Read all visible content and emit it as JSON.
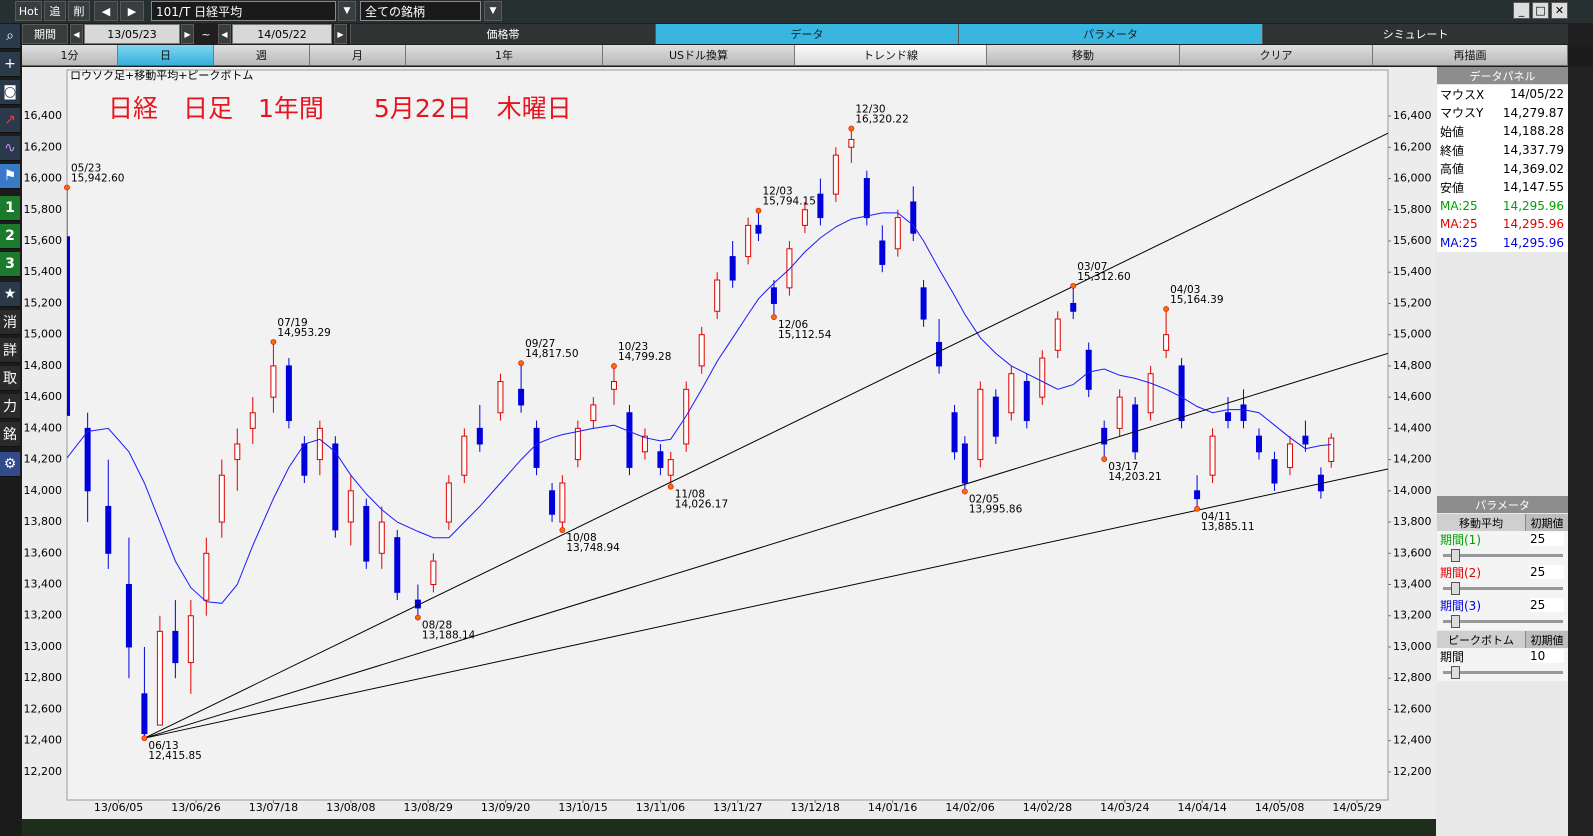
{
  "toolbar": {
    "buttons": [
      "Hot",
      "追",
      "削"
    ],
    "symbol": "101/T 日経平均",
    "filter": "全ての銘柄"
  },
  "period": {
    "label": "期間",
    "from": "13/05/23",
    "separator": "~",
    "to": "14/05/22"
  },
  "tabs": [
    "価格帯",
    "データ",
    "パラメータ",
    "シミュレート"
  ],
  "buttons": [
    "1分",
    "日",
    "週",
    "月",
    "1年",
    "USドル換算",
    "トレンド線",
    "移動",
    "クリア",
    "再描画"
  ],
  "sidebar": [
    "1",
    "2",
    "3",
    "消",
    "詳",
    "取",
    "力",
    "銘"
  ],
  "chart_data": {
    "type": "candlestick",
    "title": "ロウソク足+移動平均+ピークボトム",
    "annotation": "日経　日足　1年間　　5月22日　木曜日",
    "up_color": "#e00000",
    "down_color": "#0000dd",
    "ma_color": "#1a1aff",
    "peak_color": "#ff6a00",
    "trend_color": "#000000",
    "x": [
      0,
      4,
      8,
      12,
      15,
      18,
      21,
      24,
      27,
      30,
      33,
      36,
      40,
      43,
      46,
      49,
      52,
      55,
      58,
      61,
      64,
      68,
      71,
      74,
      77,
      80,
      84,
      88,
      91,
      94,
      96,
      99,
      102,
      106,
      109,
      112,
      115,
      117,
      120,
      123,
      126,
      129,
      132,
      134,
      137,
      140,
      143,
      146,
      149,
      152,
      155,
      158,
      161,
      164,
      166,
      169,
      172,
      174,
      177,
      180,
      183,
      186,
      189,
      192,
      195,
      198,
      201,
      204,
      207,
      210,
      213,
      216,
      219,
      222,
      225,
      228,
      231,
      234,
      237,
      240,
      243,
      245
    ],
    "open": [
      15627,
      14400,
      13900,
      13400,
      12700,
      12500,
      13100,
      12900,
      13300,
      13800,
      14200,
      14400,
      14600,
      14800,
      14300,
      14200,
      14300,
      13800,
      13900,
      13600,
      13700,
      13300,
      13400,
      13800,
      14100,
      14400,
      14500,
      14650,
      14400,
      14000,
      13800,
      14200,
      14450,
      14650,
      14500,
      14250,
      14250,
      14100,
      14300,
      14800,
      15150,
      15500,
      15500,
      15700,
      15300,
      15300,
      15700,
      15900,
      15900,
      16200,
      16000,
      15600,
      15550,
      15850,
      15300,
      14950,
      14500,
      14300,
      14200,
      14600,
      14500,
      14700,
      14600,
      14900,
      15200,
      14900,
      14400,
      14400,
      14550,
      14500,
      14900,
      14800,
      14000,
      14100,
      14500,
      14550,
      14350,
      14200,
      14150,
      14350,
      14100,
      14188.28
    ],
    "high": [
      15942.6,
      14500,
      14200,
      13700,
      13000,
      13200,
      13300,
      13300,
      13700,
      14200,
      14400,
      14600,
      14953.29,
      14850,
      14350,
      14450,
      14350,
      14100,
      13950,
      13900,
      13750,
      13400,
      13600,
      14100,
      14400,
      14550,
      14750,
      14817.5,
      14450,
      14050,
      14100,
      14450,
      14600,
      14799.28,
      14550,
      14400,
      14300,
      14250,
      14700,
      15050,
      15400,
      15600,
      15750,
      15794.15,
      15350,
      15600,
      15850,
      16000,
      16200,
      16320.22,
      16050,
      15700,
      15800,
      15950,
      15350,
      15100,
      14550,
      14350,
      14700,
      14650,
      14800,
      14750,
      14900,
      15150,
      15312.6,
      14950,
      14450,
      14650,
      14600,
      14800,
      15164.39,
      14850,
      14100,
      14400,
      14600,
      14650,
      14400,
      14250,
      14350,
      14450,
      14150,
      14369.02
    ],
    "low": [
      14483,
      13800,
      13500,
      12800,
      12415.85,
      12500,
      12800,
      12700,
      13200,
      13700,
      14000,
      14300,
      14500,
      14400,
      14050,
      14100,
      13700,
      13650,
      13500,
      13500,
      13300,
      13188.14,
      13350,
      13750,
      14050,
      14250,
      14450,
      14500,
      14100,
      13800,
      13748.94,
      14150,
      14400,
      14550,
      14100,
      14200,
      14100,
      14026.17,
      14250,
      14750,
      15100,
      15300,
      15450,
      15600,
      15112.54,
      15250,
      15650,
      15700,
      15850,
      16100,
      15700,
      15400,
      15500,
      15600,
      15050,
      14750,
      14200,
      13995.86,
      14150,
      14300,
      14450,
      14400,
      14550,
      14850,
      15100,
      14600,
      14203.21,
      14350,
      14200,
      14450,
      14850,
      14400,
      13885.11,
      14050,
      14400,
      14400,
      14200,
      14000,
      14100,
      14250,
      13950,
      14147.55
    ],
    "close": [
      14483,
      14000,
      13600,
      13000,
      12445,
      13100,
      12900,
      13200,
      13600,
      14100,
      14300,
      14500,
      14800,
      14450,
      14100,
      14400,
      13750,
      14000,
      13550,
      13800,
      13350,
      13250,
      13550,
      14050,
      14350,
      14300,
      14700,
      14550,
      14150,
      13850,
      14050,
      14400,
      14550,
      14700,
      14150,
      14350,
      14150,
      14200,
      14650,
      15000,
      15350,
      15350,
      15700,
      15650,
      15200,
      15550,
      15800,
      15750,
      16150,
      16250,
      15750,
      15450,
      15750,
      15650,
      15100,
      14800,
      14250,
      14050,
      14650,
      14350,
      14750,
      14450,
      14850,
      15100,
      15150,
      14650,
      14300,
      14600,
      14250,
      14750,
      15000,
      14450,
      13950,
      14350,
      14450,
      14450,
      14250,
      14050,
      14300,
      14300,
      14000,
      14337.79
    ],
    "ma": [
      14210,
      14380,
      14400,
      14250,
      14050,
      13800,
      13550,
      13380,
      13290,
      13280,
      13400,
      13650,
      13950,
      14150,
      14300,
      14330,
      14250,
      14100,
      13980,
      13880,
      13800,
      13740,
      13700,
      13700,
      13800,
      13900,
      14050,
      14200,
      14300,
      14340,
      14360,
      14380,
      14400,
      14420,
      14380,
      14340,
      14320,
      14330,
      14480,
      14650,
      14830,
      14980,
      15130,
      15230,
      15330,
      15420,
      15530,
      15620,
      15690,
      15740,
      15760,
      15780,
      15780,
      15700,
      15600,
      15420,
      15250,
      15130,
      14980,
      14880,
      14800,
      14750,
      14700,
      14650,
      14680,
      14760,
      14780,
      14740,
      14720,
      14690,
      14650,
      14600,
      14540,
      14500,
      14520,
      14520,
      14500,
      14420,
      14340,
      14270,
      14290,
      14295.96
    ],
    "peaks": [
      {
        "x": 0,
        "date": "05/23",
        "value": 15942.6,
        "label": "15,942.60"
      },
      {
        "x": 15,
        "date": "06/13",
        "value": 12415.85,
        "label": "12,415.85"
      },
      {
        "x": 40,
        "date": "07/19",
        "value": 14953.29,
        "label": "14,953.29"
      },
      {
        "x": 68,
        "date": "08/28",
        "value": 13188.14,
        "label": "13,188.14"
      },
      {
        "x": 88,
        "date": "09/27",
        "value": 14817.5,
        "label": "14,817.50"
      },
      {
        "x": 96,
        "date": "10/08",
        "value": 13748.94,
        "label": "13,748.94"
      },
      {
        "x": 106,
        "date": "10/23",
        "value": 14799.28,
        "label": "14,799.28"
      },
      {
        "x": 117,
        "date": "11/08",
        "value": 14026.17,
        "label": "14,026.17"
      },
      {
        "x": 134,
        "date": "12/03",
        "value": 15794.15,
        "label": "15,794.15"
      },
      {
        "x": 137,
        "date": "12/06",
        "value": 15112.54,
        "label": "15,112.54"
      },
      {
        "x": 152,
        "date": "12/30",
        "value": 16320.22,
        "label": "16,320.22"
      },
      {
        "x": 174,
        "date": "02/05",
        "value": 13995.86,
        "label": "13,995.86"
      },
      {
        "x": 195,
        "date": "03/07",
        "value": 15312.6,
        "label": "15,312.60"
      },
      {
        "x": 201,
        "date": "03/17",
        "value": 14203.21,
        "label": "14,203.21"
      },
      {
        "x": 213,
        "date": "04/03",
        "value": 15164.39,
        "label": "15,164.39"
      },
      {
        "x": 219,
        "date": "04/11",
        "value": 13885.11,
        "label": "13,885.11"
      }
    ],
    "trend_lines": [
      {
        "x": [
          15,
          256
        ],
        "y": [
          12415.85,
          16290
        ]
      },
      {
        "x": [
          15,
          256
        ],
        "y": [
          12415.85,
          14880
        ]
      },
      {
        "x": [
          15,
          256
        ],
        "y": [
          12415.85,
          14140
        ]
      }
    ],
    "xlim": [
      0,
      256
    ],
    "ylim": [
      12020,
      16695
    ],
    "xticks": [
      {
        "value": 10,
        "label": "13/06/05"
      },
      {
        "value": 25,
        "label": "13/06/26"
      },
      {
        "value": 40,
        "label": "13/07/18"
      },
      {
        "value": 55,
        "label": "13/08/08"
      },
      {
        "value": 70,
        "label": "13/08/29"
      },
      {
        "value": 85,
        "label": "13/09/20"
      },
      {
        "value": 100,
        "label": "13/10/15"
      },
      {
        "value": 115,
        "label": "13/11/06"
      },
      {
        "value": 130,
        "label": "13/11/27"
      },
      {
        "value": 145,
        "label": "13/12/18"
      },
      {
        "value": 160,
        "label": "14/01/16"
      },
      {
        "value": 175,
        "label": "14/02/06"
      },
      {
        "value": 190,
        "label": "14/02/28"
      },
      {
        "value": 205,
        "label": "14/03/24"
      },
      {
        "value": 220,
        "label": "14/04/14"
      },
      {
        "value": 235,
        "label": "14/05/08"
      },
      {
        "value": 250,
        "label": "14/05/29"
      }
    ],
    "yticks": [
      {
        "value": 12200,
        "label": "12,200"
      },
      {
        "value": 12400,
        "label": "12,400"
      },
      {
        "value": 12600,
        "label": "12,600"
      },
      {
        "value": 12800,
        "label": "12,800"
      },
      {
        "value": 13000,
        "label": "13,000"
      },
      {
        "value": 13200,
        "label": "13,200"
      },
      {
        "value": 13400,
        "label": "13,400"
      },
      {
        "value": 13600,
        "label": "13,600"
      },
      {
        "value": 13800,
        "label": "13,800"
      },
      {
        "value": 14000,
        "label": "14,000"
      },
      {
        "value": 14200,
        "label": "14,200"
      },
      {
        "value": 14400,
        "label": "14,400"
      },
      {
        "value": 14600,
        "label": "14,600"
      },
      {
        "value": 14800,
        "label": "14,800"
      },
      {
        "value": 15000,
        "label": "15,000"
      },
      {
        "value": 15200,
        "label": "15,200"
      },
      {
        "value": 15400,
        "label": "15,400"
      },
      {
        "value": 15600,
        "label": "15,600"
      },
      {
        "value": 15800,
        "label": "15,800"
      },
      {
        "value": 16000,
        "label": "16,000"
      },
      {
        "value": 16200,
        "label": "16,200"
      },
      {
        "value": 16400,
        "label": "16,400"
      }
    ],
    "grid": false
  },
  "data_panel": {
    "title": "データパネル",
    "rows": [
      [
        "マウスX",
        "14/05/22"
      ],
      [
        "マウスY",
        "14,279.87"
      ],
      [
        "始値",
        "14,188.28"
      ],
      [
        "終値",
        "14,337.79"
      ],
      [
        "高値",
        "14,369.02"
      ],
      [
        "安値",
        "14,147.55"
      ],
      [
        "MA:25",
        "14,295.96"
      ],
      [
        "MA:25",
        "14,295.96"
      ],
      [
        "MA:25",
        "14,295.96"
      ]
    ]
  },
  "parameter_panel": {
    "title": "パラメータ",
    "sections": [
      {
        "title": "移動平均",
        "reset": "初期値",
        "params": [
          {
            "label": "期間(1)",
            "value": 25
          },
          {
            "label": "期間(2)",
            "value": 25
          },
          {
            "label": "期間(3)",
            "value": 25
          }
        ]
      },
      {
        "title": "ピークボトム",
        "reset": "初期値",
        "params": [
          {
            "label": "期間",
            "value": 10
          }
        ]
      }
    ]
  }
}
